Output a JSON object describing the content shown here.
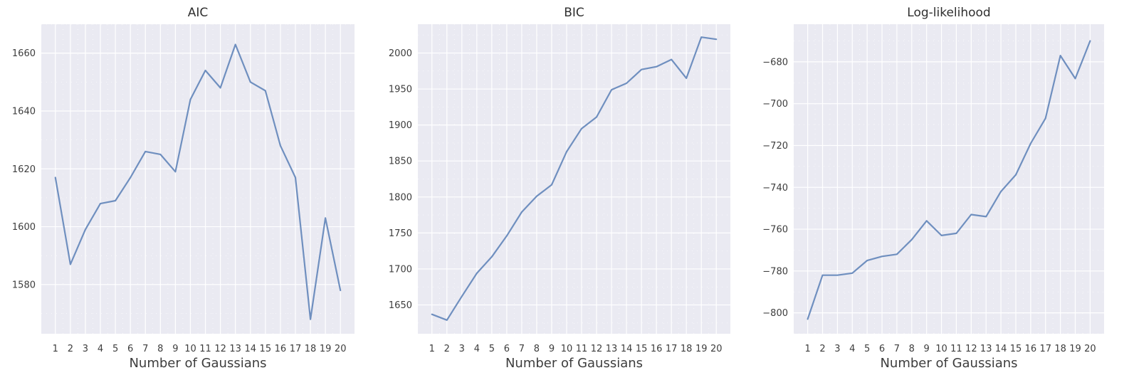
{
  "colors": {
    "line": "#6f8fbf",
    "plot_bg": "#eaeaf2",
    "grid": "#ffffff"
  },
  "chart_data": [
    {
      "type": "line",
      "title": "AIC",
      "xlabel": "Number of Gaussians",
      "ylabel": "",
      "grid": true,
      "x": [
        1,
        2,
        3,
        4,
        5,
        6,
        7,
        8,
        9,
        10,
        11,
        12,
        13,
        14,
        15,
        16,
        17,
        18,
        19,
        20
      ],
      "y": [
        1617,
        1587,
        1599,
        1608,
        1609,
        1617,
        1626,
        1625,
        1619,
        1644,
        1654,
        1648,
        1663,
        1650,
        1647,
        1628,
        1617,
        1568,
        1603,
        1578
      ],
      "yticks": [
        1580,
        1600,
        1620,
        1640,
        1660
      ],
      "ylim": [
        1563,
        1670
      ]
    },
    {
      "type": "line",
      "title": "BIC",
      "xlabel": "Number of Gaussians",
      "ylabel": "",
      "grid": true,
      "x": [
        1,
        2,
        3,
        4,
        5,
        6,
        7,
        8,
        9,
        10,
        11,
        12,
        13,
        14,
        15,
        16,
        17,
        18,
        19,
        20
      ],
      "y": [
        1637,
        1629,
        1662,
        1694,
        1717,
        1746,
        1779,
        1801,
        1817,
        1863,
        1895,
        1911,
        1949,
        1958,
        1977,
        1981,
        1991,
        1965,
        2022,
        2019
      ],
      "yticks": [
        1650,
        1700,
        1750,
        1800,
        1850,
        1900,
        1950,
        2000
      ],
      "ylim": [
        1610,
        2040
      ]
    },
    {
      "type": "line",
      "title": "Log-likelihood",
      "xlabel": "Number of Gaussians",
      "ylabel": "",
      "grid": true,
      "x": [
        1,
        2,
        3,
        4,
        5,
        6,
        7,
        8,
        9,
        10,
        11,
        12,
        13,
        14,
        15,
        16,
        17,
        18,
        19,
        20
      ],
      "y": [
        -803,
        -782,
        -782,
        -781,
        -775,
        -773,
        -772,
        -765,
        -756,
        -763,
        -762,
        -753,
        -754,
        -742,
        -734,
        -719,
        -707,
        -677,
        -688,
        -670
      ],
      "yticks": [
        -800,
        -780,
        -760,
        -740,
        -720,
        -700,
        -680
      ],
      "ylim": [
        -810,
        -662
      ]
    }
  ]
}
